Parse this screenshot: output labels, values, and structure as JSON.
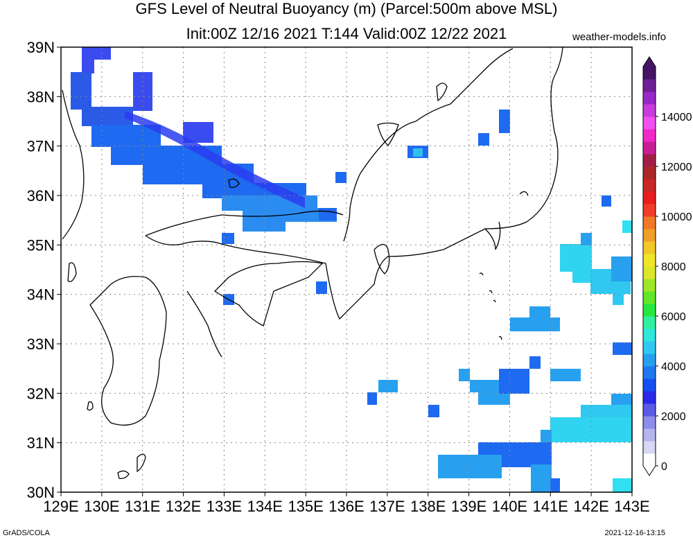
{
  "title_line1": "GFS Level of Neutral Buoyancy (m) (Parcel:500m above MSL)",
  "title_line2": "Init:00Z 12/16 2021 T:144 Valid:00Z 12/22 2021",
  "site": "weather-models.info",
  "footer_left": "GrADS/COLA",
  "footer_right": "2021-12-16-13:15",
  "lat_labels": [
    "39N",
    "38N",
    "37N",
    "36N",
    "35N",
    "34N",
    "33N",
    "32N",
    "31N",
    "30N"
  ],
  "lon_labels": [
    "129E",
    "130E",
    "131E",
    "132E",
    "133E",
    "134E",
    "135E",
    "136E",
    "137E",
    "138E",
    "139E",
    "140E",
    "141E",
    "142E",
    "143E"
  ],
  "colorbar": {
    "labels": [
      "0",
      "2000",
      "4000",
      "6000",
      "8000",
      "10000",
      "12000",
      "14000"
    ],
    "colors": [
      "#ffffff",
      "#d8d8f4",
      "#b4b4ee",
      "#8c8cea",
      "#5a5ae6",
      "#2a2ae6",
      "#1450f0",
      "#1f78f0",
      "#28a0f0",
      "#30c8f0",
      "#30e6dc",
      "#30f0a0",
      "#28e640",
      "#64e628",
      "#a0e628",
      "#dce628",
      "#f0e628",
      "#f0c828",
      "#f0a028",
      "#f07828",
      "#f03c28",
      "#e61e1e",
      "#c82828",
      "#aa2828",
      "#a01e46",
      "#c81e96",
      "#f028c8",
      "#f050f0",
      "#c83cdc",
      "#9628c8",
      "#6e1e96",
      "#461464"
    ]
  },
  "field_legend": {
    "blue_deep": "#2a3cf0",
    "blue": "#1e64f0",
    "light_blue": "#28a0f0",
    "cyan": "#30e0f0"
  }
}
